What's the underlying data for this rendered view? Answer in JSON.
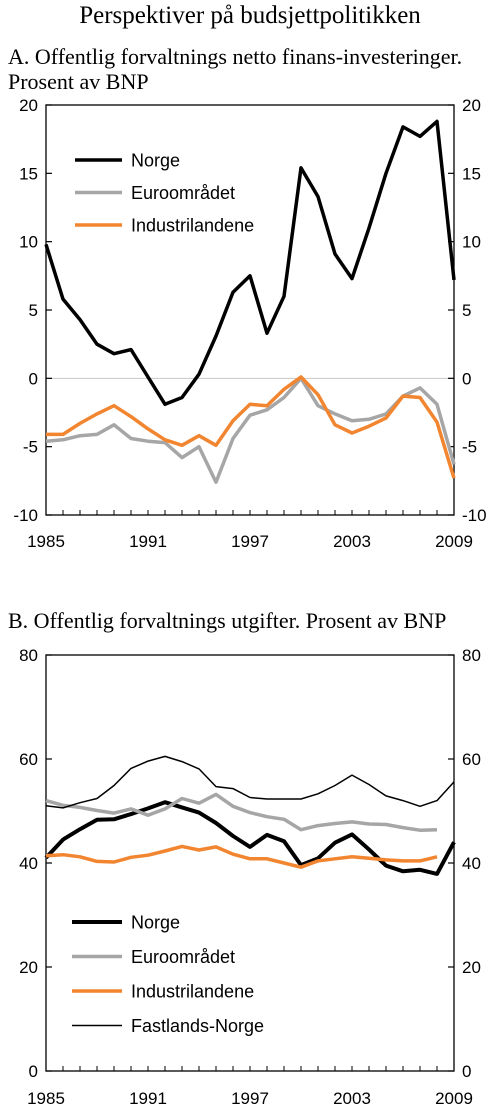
{
  "main_title": "Perspektiver på budsjettpolitikken",
  "panel_a_title": "A. Offentlig forvaltnings netto finans-investeringer. Prosent av BNP",
  "panel_b_title": "B. Offentlig forvaltnings utgifter. Prosent av BNP",
  "colors": {
    "norge": "#000000",
    "euro": "#a6a6a6",
    "industri": "#f28530",
    "fastland": "#000000",
    "zero_line": "#c8c8c8"
  },
  "chart_data": [
    {
      "type": "line",
      "title": "A. Offentlig forvaltnings netto finans-investeringer. Prosent av BNP",
      "x_ticks": [
        "1985",
        "1991",
        "1997",
        "2003",
        "2009"
      ],
      "y_ticks": [
        "20",
        "15",
        "10",
        "5",
        "0",
        "-5",
        "-10"
      ],
      "ylim": [
        -10,
        20
      ],
      "xlim": [
        1985,
        2009
      ],
      "grid": false,
      "legend_position": "top-left",
      "series": [
        {
          "name": "Norge",
          "x": [
            1985,
            1986,
            1987,
            1988,
            1989,
            1990,
            1991,
            1992,
            1993,
            1994,
            1995,
            1996,
            1997,
            1998,
            1999,
            2000,
            2001,
            2002,
            2003,
            2004,
            2005,
            2006,
            2007,
            2008,
            2009
          ],
          "values": [
            9.8,
            5.8,
            4.3,
            2.5,
            1.8,
            2.1,
            0.1,
            -1.9,
            -1.4,
            0.3,
            3.1,
            6.3,
            7.5,
            3.3,
            6.0,
            15.4,
            13.3,
            9.1,
            7.3,
            11.0,
            15.0,
            18.4,
            17.7,
            18.8,
            7.2
          ]
        },
        {
          "name": "Euroområdet",
          "x": [
            1985,
            1986,
            1987,
            1988,
            1989,
            1990,
            1991,
            1992,
            1993,
            1994,
            1995,
            1996,
            1997,
            1998,
            1999,
            2000,
            2001,
            2002,
            2003,
            2004,
            2005,
            2006,
            2007,
            2008,
            2009
          ],
          "values": [
            -4.6,
            -4.5,
            -4.2,
            -4.1,
            -3.4,
            -4.4,
            -4.6,
            -4.7,
            -5.8,
            -5.0,
            -7.6,
            -4.4,
            -2.7,
            -2.3,
            -1.4,
            0.0,
            -2.0,
            -2.6,
            -3.1,
            -3.0,
            -2.6,
            -1.3,
            -0.7,
            -1.9,
            -6.3
          ]
        },
        {
          "name": "Industrilandene",
          "x": [
            1985,
            1986,
            1987,
            1988,
            1989,
            1990,
            1991,
            1992,
            1993,
            1994,
            1995,
            1996,
            1997,
            1998,
            1999,
            2000,
            2001,
            2002,
            2003,
            2004,
            2005,
            2006,
            2007,
            2008,
            2009
          ],
          "values": [
            -4.1,
            -4.1,
            -3.3,
            -2.6,
            -2.0,
            -2.8,
            -3.7,
            -4.5,
            -4.9,
            -4.2,
            -4.9,
            -3.1,
            -1.9,
            -2.0,
            -0.8,
            0.1,
            -1.2,
            -3.4,
            -4.0,
            -3.5,
            -2.9,
            -1.3,
            -1.4,
            -3.2,
            -7.3
          ]
        }
      ]
    },
    {
      "type": "line",
      "title": "B. Offentlig forvaltnings utgifter. Prosent av BNP",
      "x_ticks": [
        "1985",
        "1991",
        "1997",
        "2003",
        "2009"
      ],
      "y_ticks": [
        "80",
        "60",
        "40",
        "20",
        "0"
      ],
      "ylim": [
        0,
        80
      ],
      "xlim": [
        1985,
        2009
      ],
      "grid": false,
      "legend_position": "bottom-left",
      "series": [
        {
          "name": "Norge",
          "x": [
            1985,
            1986,
            1987,
            1988,
            1989,
            1990,
            1991,
            1992,
            1993,
            1994,
            1995,
            1996,
            1997,
            1998,
            1999,
            2000,
            2001,
            2002,
            2003,
            2004,
            2005,
            2006,
            2007,
            2008,
            2009
          ],
          "values": [
            41.0,
            44.5,
            46.5,
            48.3,
            48.4,
            49.4,
            50.5,
            51.7,
            50.7,
            49.7,
            47.7,
            45.2,
            43.1,
            45.4,
            44.2,
            39.6,
            40.9,
            43.9,
            45.5,
            42.6,
            39.5,
            38.4,
            38.7,
            37.9,
            44.0
          ]
        },
        {
          "name": "Euroområdet",
          "x": [
            1985,
            1986,
            1987,
            1988,
            1989,
            1990,
            1991,
            1992,
            1993,
            1994,
            1995,
            1996,
            1997,
            1998,
            1999,
            2000,
            2001,
            2002,
            2003,
            2004,
            2005,
            2006,
            2007,
            2008
          ],
          "values": [
            52.0,
            51.1,
            50.7,
            50.1,
            49.6,
            50.4,
            49.2,
            50.4,
            52.4,
            51.5,
            53.2,
            50.9,
            49.7,
            48.9,
            48.4,
            46.4,
            47.2,
            47.6,
            47.9,
            47.5,
            47.4,
            46.8,
            46.3,
            46.4
          ]
        },
        {
          "name": "Industrilandene",
          "x": [
            1985,
            1986,
            1987,
            1988,
            1989,
            1990,
            1991,
            1992,
            1993,
            1994,
            1995,
            1996,
            1997,
            1998,
            1999,
            2000,
            2001,
            2002,
            2003,
            2004,
            2005,
            2006,
            2007,
            2008
          ],
          "values": [
            41.4,
            41.6,
            41.2,
            40.3,
            40.2,
            41.1,
            41.5,
            42.3,
            43.2,
            42.5,
            43.1,
            41.7,
            40.8,
            40.8,
            40.0,
            39.2,
            40.4,
            40.8,
            41.2,
            40.9,
            40.6,
            40.4,
            40.4,
            41.2
          ]
        },
        {
          "name": "Fastlands-Norge",
          "x": [
            1985,
            1986,
            1987,
            1988,
            1989,
            1990,
            1991,
            1992,
            1993,
            1994,
            1995,
            1996,
            1997,
            1998,
            1999,
            2000,
            2001,
            2002,
            2003,
            2004,
            2005,
            2006,
            2007,
            2008,
            2009
          ],
          "values": [
            51.0,
            50.6,
            51.6,
            52.4,
            54.9,
            58.2,
            59.6,
            60.5,
            59.5,
            58.1,
            54.7,
            54.3,
            52.6,
            52.3,
            52.3,
            52.3,
            53.3,
            54.9,
            56.9,
            55.1,
            52.9,
            52.0,
            50.9,
            52.0,
            55.6
          ]
        }
      ]
    }
  ]
}
